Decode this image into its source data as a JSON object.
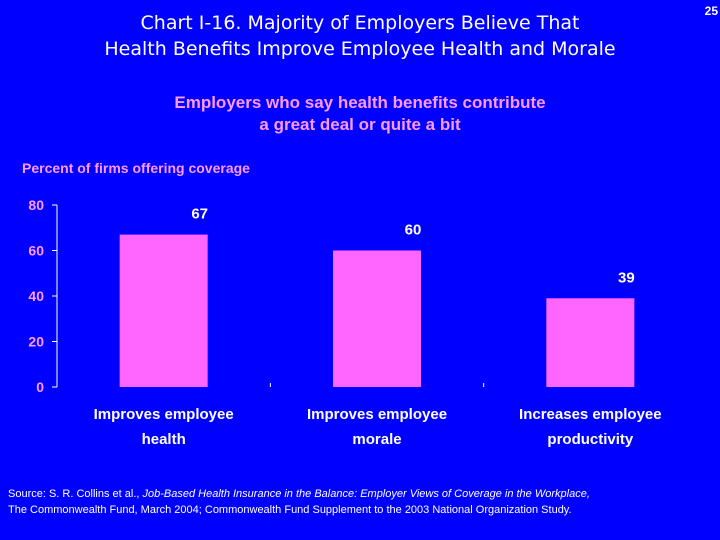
{
  "slide": {
    "page_number": "25",
    "title_line1": "Chart I-16. Majority of Employers Believe That",
    "title_line2": "Health Benefits Improve Employee Health and Morale",
    "subtitle_line1": "Employers who say health benefits contribute",
    "subtitle_line2": "a great deal or quite a bit",
    "source_prefix": "Source: S. R. Collins et al., ",
    "source_italic": "Job-Based Health Insurance in the Balance: Employer Views of Coverage in the Workplace,",
    "source_suffix": " The Commonwealth Fund, March 2004; Commonwealth Fund Supplement to the 2003 National Organization Study."
  },
  "colors": {
    "background": "#0000ff",
    "bar": "#ff66ff",
    "text": "#ffffff",
    "accent_text": "#ff99ff"
  },
  "chart_data": {
    "type": "bar",
    "ylabel": "Percent of firms offering coverage",
    "categories": [
      [
        "Improves employee",
        "health"
      ],
      [
        "Improves employee",
        "morale"
      ],
      [
        "Increases employee",
        "productivity"
      ]
    ],
    "values": [
      67,
      60,
      39
    ],
    "ylim": [
      0,
      80
    ],
    "yticks": [
      0,
      20,
      40,
      60,
      80
    ],
    "grid": false
  }
}
